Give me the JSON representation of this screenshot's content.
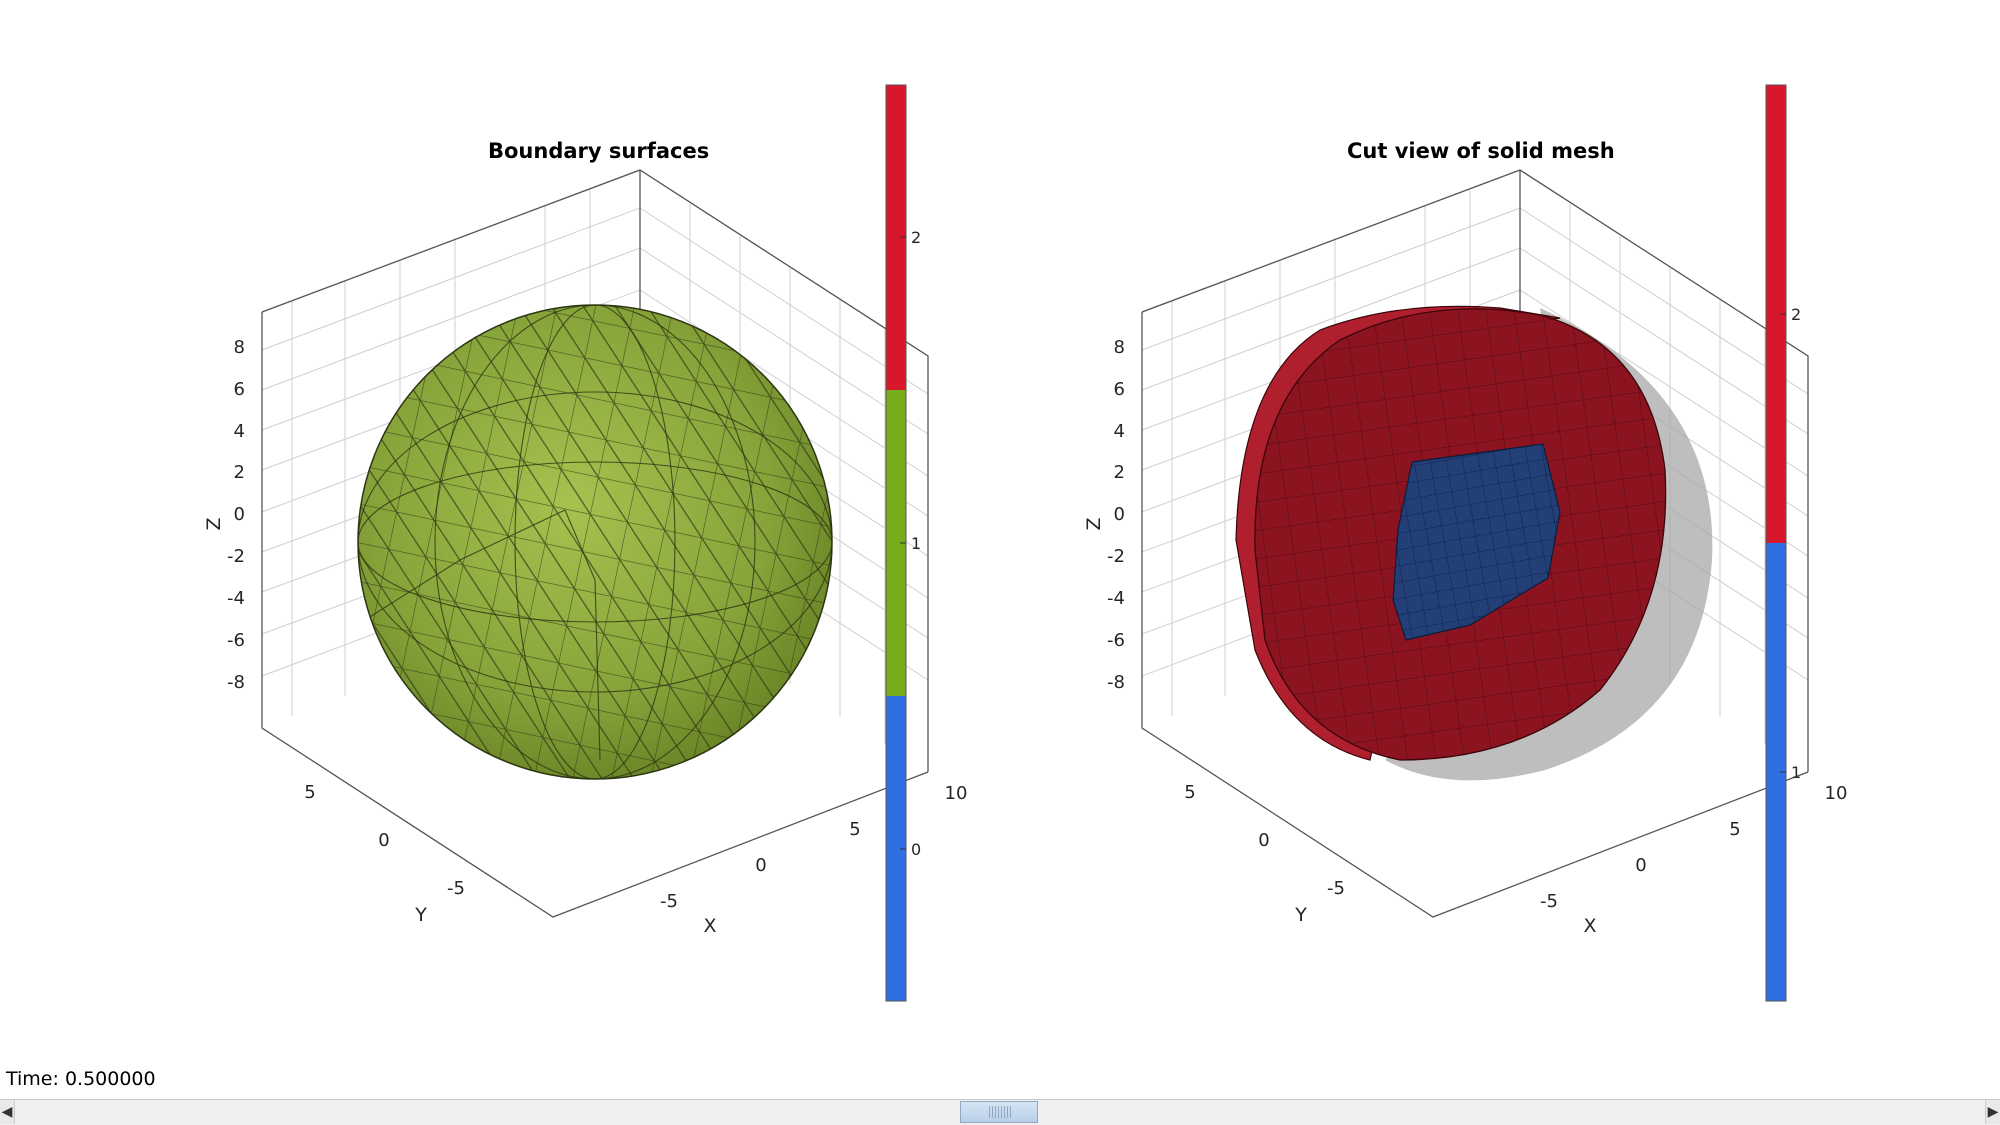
{
  "left_plot": {
    "title": "Boundary surfaces",
    "z_ticks": [
      "8",
      "6",
      "4",
      "2",
      "0",
      "-2",
      "-4",
      "-6",
      "-8"
    ],
    "y_ticks": [
      "5",
      "0",
      "-5"
    ],
    "x_ticks": [
      "-5",
      "0",
      "5",
      "10"
    ],
    "xlabel": "X",
    "ylabel": "Y",
    "zlabel": "Z",
    "sphere_color": "#7a9a2a",
    "colorbar": {
      "ticks": [
        "2",
        "1",
        "0"
      ],
      "colors": [
        "#d7182a",
        "#77ac1a",
        "#2f6fe4"
      ]
    }
  },
  "right_plot": {
    "title": "Cut view of solid mesh",
    "z_ticks": [
      "8",
      "6",
      "4",
      "2",
      "0",
      "-2",
      "-4",
      "-6",
      "-8"
    ],
    "y_ticks": [
      "5",
      "0",
      "-5"
    ],
    "x_ticks": [
      "-5",
      "0",
      "5",
      "10"
    ],
    "xlabel": "X",
    "ylabel": "Y",
    "zlabel": "Z",
    "outer_color": "#8c1420",
    "inner_color": "#223f78",
    "colorbar": {
      "ticks": [
        "2",
        "1"
      ],
      "colors": [
        "#d7182a",
        "#2f6fe4"
      ]
    }
  },
  "status": {
    "time_label": "Time: 0.500000"
  },
  "scrollbar": {
    "left_arrow": "◀",
    "right_arrow": "▶"
  }
}
